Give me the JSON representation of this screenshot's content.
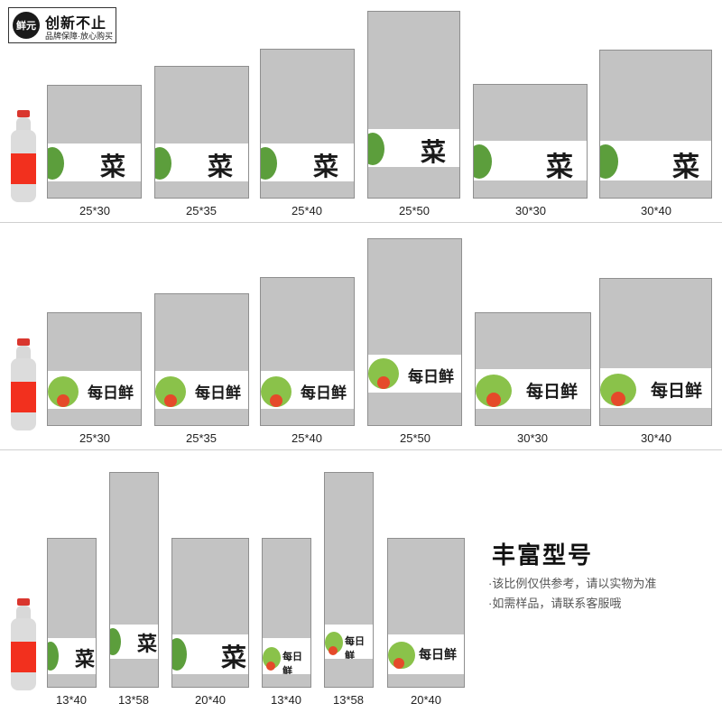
{
  "brand": {
    "circle": "鲜元",
    "title": "创新不止",
    "subtitle": "品牌保障·放心购买"
  },
  "rows": [
    {
      "labels": [
        "25*30",
        "25*35",
        "25*40",
        "25*50",
        "30*30",
        "30*40"
      ],
      "print": "菜"
    },
    {
      "labels": [
        "25*30",
        "25*35",
        "25*40",
        "25*50",
        "30*30",
        "30*40"
      ],
      "print": "每日鲜"
    },
    {
      "labels": [
        "13*40",
        "13*58",
        "20*40",
        "13*40",
        "13*58",
        "20*40"
      ]
    }
  ],
  "info": {
    "heading": "丰富型号",
    "notes": [
      "·该比例仅供参考，请以实物为准",
      "·如需样品，请联系客服哦"
    ]
  },
  "colors": {
    "bag": "#c3c3c3",
    "bottle_label": "#f2301e",
    "leaf": "#5c9e3c"
  }
}
